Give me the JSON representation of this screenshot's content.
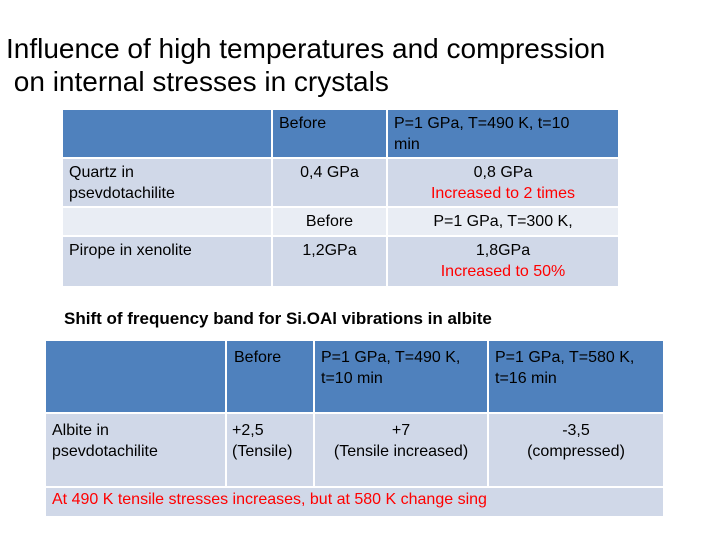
{
  "title": {
    "line1": "Influence of high temperatures and compression",
    "line2": " on internal stresses in crystals"
  },
  "table1": {
    "header1": "Before",
    "header2a": "P=1 GPa, T=490 K,  t=10",
    "header2b": "min",
    "quartz": {
      "label_a": "Quartz in",
      "label_b": "psevdotachilite",
      "before": "0,4 GPa",
      "after_a": "0,8 GPa",
      "after_b": "Increased to 2 times"
    },
    "sub_header1": "Before",
    "sub_header2": "P=1 GPa, T=300 K,",
    "pirope": {
      "label": "Pirope in xenolite",
      "before": "1,2GPa",
      "after_a": "1,8GPa",
      "after_b": "Increased to 50%"
    }
  },
  "section_title": "Shift of frequency band for Si.OAl vibrations in albite",
  "table2": {
    "header1": "Before",
    "header2a": "P=1 GPa, T=490 K,",
    "header2b": "t=10 min",
    "header3a": "P=1 GPa, T=580 K,",
    "header3b": "t=16 min",
    "albite": {
      "label_a": "Albite in",
      "label_b": "psevdotachilite",
      "before_a": "+2,5",
      "before_b": "(Tensile)",
      "c2_a": "+7",
      "c2_b": "(Tensile increased)",
      "c3_a": "-3,5",
      "c3_b": "(compressed)"
    }
  },
  "note": "At 490 K tensile stresses increases,  but  at 580 K change sing",
  "colors": {
    "header_blue": "#4f81bd",
    "row_light": "#d0d8e8",
    "row_lighter": "#e9edf4",
    "highlight_red": "#ff0000"
  }
}
